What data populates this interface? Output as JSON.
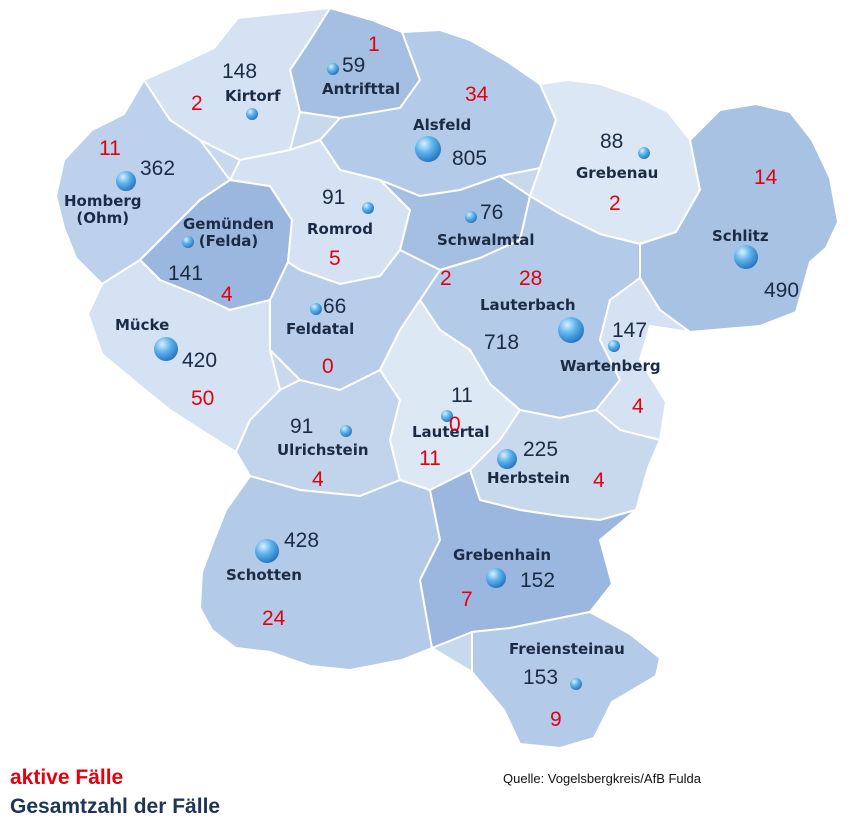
{
  "legend": {
    "active": "aktive Fälle",
    "total": "Gesamtzahl der Fälle"
  },
  "source": "Quelle: Vogelsbergkreis/AfB Fulda",
  "colors": {
    "active": "#e3000f",
    "total": "#1c2b44",
    "region_light": "#d4e2f3",
    "region_mid": "#b7cde9",
    "region_dark": "#95b2dc",
    "border": "#ffffff"
  },
  "municipalities": [
    {
      "name": "Antrifttal",
      "total": "59",
      "active": "1"
    },
    {
      "name": "Kirtorf",
      "total": "148",
      "active": "2"
    },
    {
      "name": "Alsfeld",
      "total": "805",
      "active": "34"
    },
    {
      "name": "Grebenau",
      "total": "88",
      "active": "2"
    },
    {
      "name": "Homberg\n(Ohm)",
      "total": "362",
      "active": "11"
    },
    {
      "name": "Schlitz",
      "total": "490",
      "active": "14"
    },
    {
      "name": "Romrod",
      "total": "91",
      "active": "5"
    },
    {
      "name": "Gemünden\n(Felda)",
      "total": "141",
      "active": "4"
    },
    {
      "name": "Schwalmtal",
      "total": "76",
      "active": "2"
    },
    {
      "name": "Lauterbach",
      "total": "718",
      "active": "28"
    },
    {
      "name": "Feldatal",
      "total": "66",
      "active": "0"
    },
    {
      "name": "Mücke",
      "total": "420",
      "active": "50"
    },
    {
      "name": "Wartenberg",
      "total": "147",
      "active": "4"
    },
    {
      "name": "Ulrichstein",
      "total": "91",
      "active": "4"
    },
    {
      "name": "Lautertal",
      "total": "11",
      "active": "0"
    },
    {
      "name": "Herbstein",
      "total": "225",
      "active": "4"
    },
    {
      "name": "Schotten",
      "total": "428",
      "active": "24"
    },
    {
      "name": "Grebenhain",
      "total": "152",
      "active": "7"
    },
    {
      "name": "Freiensteinau",
      "total": "153",
      "active": "9"
    },
    {
      "name": "",
      "total": "",
      "active": "11"
    }
  ]
}
